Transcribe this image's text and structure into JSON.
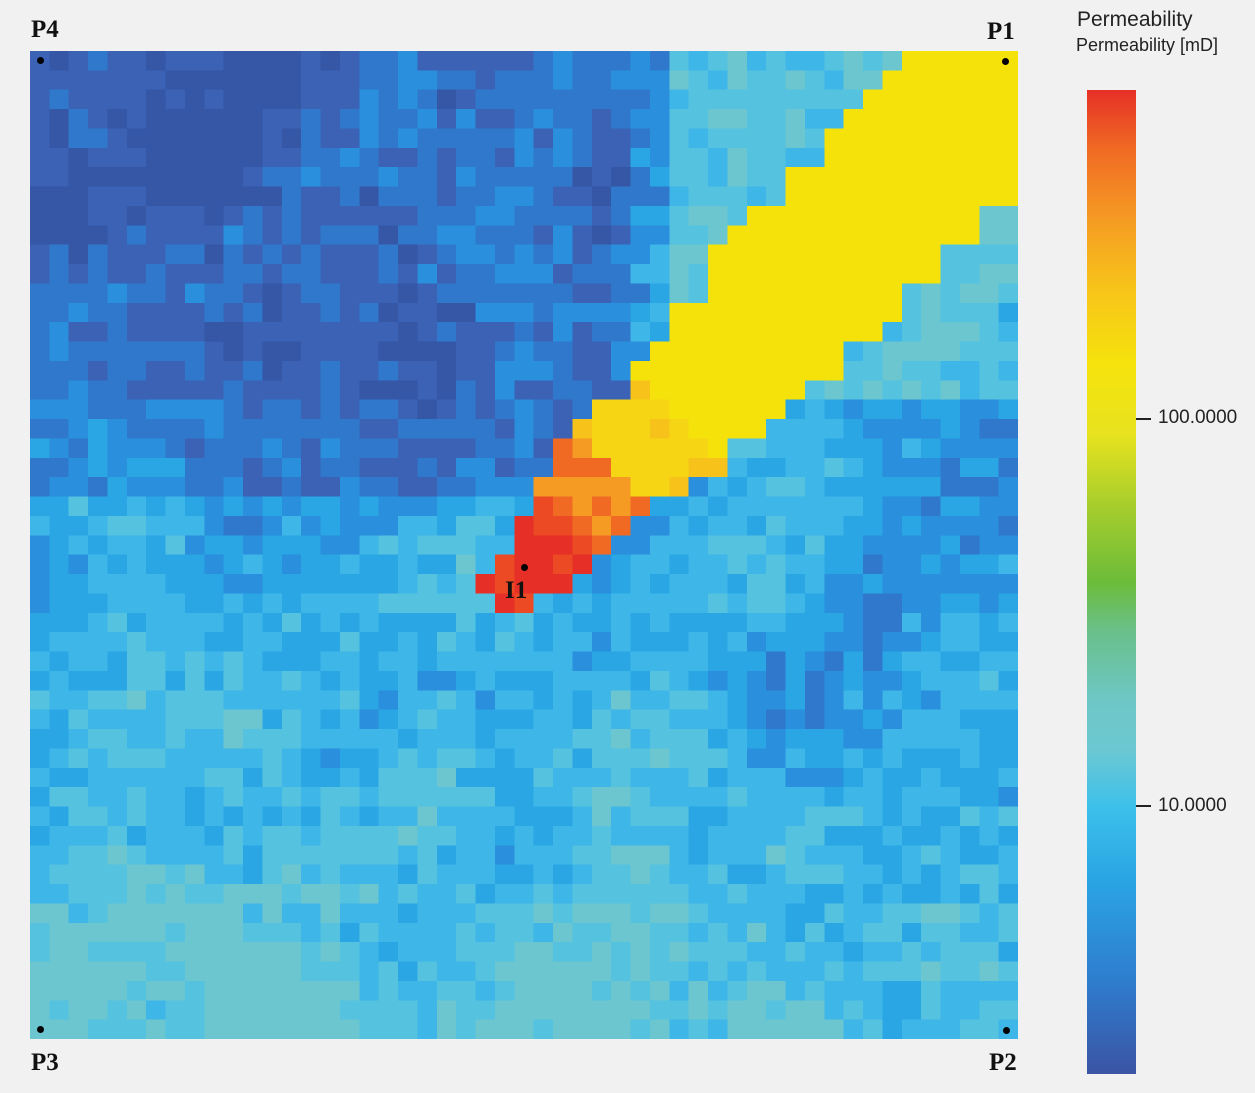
{
  "wells": {
    "p4": "P4",
    "p1": "P1",
    "p3": "P3",
    "p2": "P2",
    "i1": "I1"
  },
  "legend": {
    "title": "Permeability",
    "subtitle": "Permeability [mD]",
    "ticks": [
      "100.0000",
      "10.0000"
    ]
  },
  "chart_data": {
    "type": "heatmap",
    "title": "",
    "grid_size": [
      51,
      51
    ],
    "colorbar": {
      "scale": "log",
      "units": "mD",
      "labeled_ticks": [
        100,
        10
      ],
      "colors_low_to_high": [
        "#3b54a4",
        "#2e7fd0",
        "#2aa6e4",
        "#3cc0ea",
        "#6ec7c5",
        "#6cbc3a",
        "#e7e31f",
        "#f6e30c",
        "#f59a23",
        "#e62f26"
      ]
    },
    "wells": [
      {
        "name": "P1",
        "corner": "top-right"
      },
      {
        "name": "P2",
        "corner": "bottom-right"
      },
      {
        "name": "P3",
        "corner": "bottom-left"
      },
      {
        "name": "P4",
        "corner": "top-left"
      },
      {
        "name": "I1",
        "position": "center"
      }
    ],
    "regions": [
      {
        "description": "high-permeability channel",
        "from": "I1",
        "to": "P1",
        "range_mD": [
          150,
          400
        ]
      },
      {
        "description": "background matrix",
        "range_mD": [
          2,
          15
        ]
      }
    ]
  }
}
